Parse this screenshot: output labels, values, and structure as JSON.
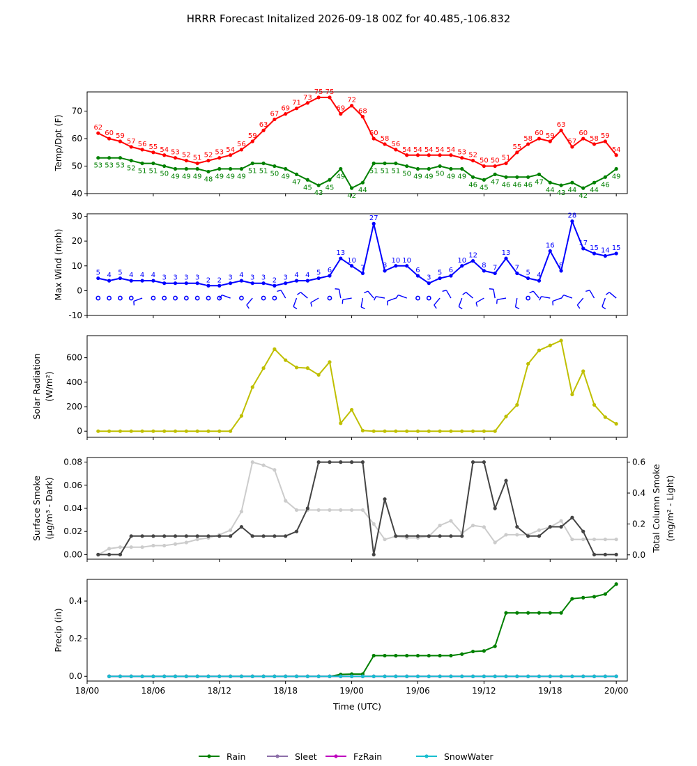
{
  "title": "HRRR Forecast Initalized 2026-09-18 00Z for 40.485,-106.832",
  "chart_data": [
    {
      "id": "temp",
      "type": "line",
      "ylabel": "Temp/Dpt (F)",
      "ylim": [
        40,
        77
      ],
      "yticks": [
        40,
        50,
        60,
        70
      ],
      "x_hours": [
        1,
        2,
        3,
        4,
        5,
        6,
        7,
        8,
        9,
        10,
        11,
        12,
        13,
        14,
        15,
        16,
        17,
        18,
        19,
        20,
        21,
        22,
        23,
        24,
        25,
        26,
        27,
        28,
        29,
        30,
        31,
        32,
        33,
        34,
        35,
        36,
        37,
        38,
        39,
        40,
        41,
        42,
        43,
        44,
        45,
        46,
        47,
        48
      ],
      "series": [
        {
          "name": "",
          "color": "#ff0000",
          "labels": true,
          "label_pos": "above",
          "values": [
            62,
            60,
            59,
            57,
            56,
            55,
            54,
            53,
            52,
            51,
            52,
            53,
            54,
            56,
            59,
            63,
            67,
            69,
            71,
            73,
            75,
            75,
            69,
            72,
            68,
            60,
            58,
            56,
            54,
            54,
            54,
            54,
            54,
            53,
            52,
            50,
            50,
            51,
            55,
            58,
            60,
            59,
            63,
            57,
            60,
            58,
            59,
            54
          ]
        },
        {
          "name": "",
          "color": "#008000",
          "labels": true,
          "label_pos": "below",
          "values": [
            53,
            53,
            53,
            52,
            51,
            51,
            50,
            49,
            49,
            49,
            48,
            49,
            49,
            49,
            51,
            51,
            50,
            49,
            47,
            45,
            43,
            45,
            49,
            42,
            44,
            51,
            51,
            51,
            50,
            49,
            49,
            50,
            49,
            49,
            46,
            45,
            47,
            46,
            46,
            46,
            47,
            44,
            43,
            44,
            42,
            44,
            46,
            49
          ]
        }
      ]
    },
    {
      "id": "wind",
      "type": "line",
      "ylabel": "Max Wind (mph)",
      "ylim": [
        -10,
        31
      ],
      "yticks": [
        -10,
        0,
        10,
        20,
        30
      ],
      "x_hours": [
        1,
        2,
        3,
        4,
        5,
        6,
        7,
        8,
        9,
        10,
        11,
        12,
        13,
        14,
        15,
        16,
        17,
        18,
        19,
        20,
        21,
        22,
        23,
        24,
        25,
        26,
        27,
        28,
        29,
        30,
        31,
        32,
        33,
        34,
        35,
        36,
        37,
        38,
        39,
        40,
        41,
        42,
        43,
        44,
        45,
        46,
        47,
        48
      ],
      "series": [
        {
          "name": "",
          "color": "#0000ff",
          "labels": true,
          "label_pos": "above",
          "values": [
            5,
            4,
            5,
            4,
            4,
            4,
            3,
            3,
            3,
            3,
            2,
            2,
            3,
            4,
            3,
            3,
            2,
            3,
            4,
            4,
            5,
            6,
            13,
            10,
            7,
            27,
            8,
            10,
            10,
            6,
            3,
            5,
            6,
            10,
            12,
            8,
            7,
            13,
            7,
            5,
            4,
            16,
            8,
            28,
            17,
            15,
            14,
            15
          ]
        }
      ],
      "barbs": {
        "y_value": -3,
        "calm_hours": [
          1,
          2,
          3,
          4,
          6,
          7,
          8,
          9,
          10,
          11,
          12,
          14,
          16,
          17,
          22,
          30,
          31,
          40
        ],
        "barb_hours": [
          5,
          13,
          15,
          18,
          19,
          20,
          21,
          23,
          24,
          25,
          26,
          27,
          28,
          29,
          32,
          33,
          34,
          35,
          36,
          37,
          38,
          39,
          41,
          42,
          43,
          44,
          45,
          46,
          47,
          48
        ]
      }
    },
    {
      "id": "solar",
      "type": "line",
      "ylabel": "Solar Radiation",
      "ylabel_unit": "(W/m²)",
      "ylim": [
        -50,
        780
      ],
      "yticks": [
        0,
        200,
        400,
        600
      ],
      "x_hours": [
        1,
        2,
        3,
        4,
        5,
        6,
        7,
        8,
        9,
        10,
        11,
        12,
        13,
        14,
        15,
        16,
        17,
        18,
        19,
        20,
        21,
        22,
        23,
        24,
        25,
        26,
        27,
        28,
        29,
        30,
        31,
        32,
        33,
        34,
        35,
        36,
        37,
        38,
        39,
        40,
        41,
        42,
        43,
        44,
        45,
        46,
        47,
        48
      ],
      "series": [
        {
          "name": "",
          "color": "#bfbf00",
          "labels": false,
          "values": [
            0,
            0,
            0,
            0,
            0,
            0,
            0,
            0,
            0,
            0,
            0,
            0,
            0,
            125,
            360,
            515,
            670,
            580,
            520,
            515,
            460,
            565,
            65,
            175,
            5,
            0,
            0,
            0,
            0,
            0,
            0,
            0,
            0,
            0,
            0,
            0,
            0,
            120,
            215,
            550,
            660,
            700,
            740,
            300,
            490,
            215,
            115,
            60
          ]
        }
      ]
    },
    {
      "id": "smoke",
      "type": "line",
      "ylabel": "Surface Smoke",
      "ylabel_unit": "(μg/m³ - Dark)",
      "ylabel_right": "Total Column Smoke",
      "ylabel_right_unit": "(mg/m² - Light)",
      "ylim": [
        -0.004,
        0.084
      ],
      "yticks": [
        0.0,
        0.02,
        0.04,
        0.06,
        0.08
      ],
      "ytick_labels": [
        "0.00",
        "0.02",
        "0.04",
        "0.06",
        "0.08"
      ],
      "ylim_right": [
        -0.028,
        0.63
      ],
      "yticks_right": [
        0.0,
        0.2,
        0.4,
        0.6
      ],
      "ytick_labels_right": [
        "0.0",
        "0.2",
        "0.4",
        "0.6"
      ],
      "x_hours": [
        1,
        2,
        3,
        4,
        5,
        6,
        7,
        8,
        9,
        10,
        11,
        12,
        13,
        14,
        15,
        16,
        17,
        18,
        19,
        20,
        21,
        22,
        23,
        24,
        25,
        26,
        27,
        28,
        29,
        30,
        31,
        32,
        33,
        34,
        35,
        36,
        37,
        38,
        39,
        40,
        41,
        42,
        43,
        44,
        45,
        46,
        47,
        48
      ],
      "series": [
        {
          "name": "",
          "color": "#cccccc",
          "axis": "right",
          "labels": false,
          "values": [
            0.0,
            0.04,
            0.05,
            0.05,
            0.05,
            0.06,
            0.06,
            0.07,
            0.08,
            0.1,
            0.11,
            0.13,
            0.16,
            0.28,
            0.6,
            0.58,
            0.55,
            0.35,
            0.29,
            0.29,
            0.29,
            0.29,
            0.29,
            0.29,
            0.29,
            0.2,
            0.1,
            0.12,
            0.11,
            0.11,
            0.12,
            0.19,
            0.22,
            0.14,
            0.19,
            0.18,
            0.08,
            0.13,
            0.13,
            0.13,
            0.16,
            0.18,
            0.22,
            0.1,
            0.1,
            0.1,
            0.1,
            0.1
          ]
        },
        {
          "name": "",
          "color": "#444444",
          "axis": "left",
          "labels": false,
          "values": [
            0.0,
            0.0,
            0.0,
            0.016,
            0.016,
            0.016,
            0.016,
            0.016,
            0.016,
            0.016,
            0.016,
            0.016,
            0.016,
            0.024,
            0.016,
            0.016,
            0.016,
            0.016,
            0.02,
            0.04,
            0.08,
            0.08,
            0.08,
            0.08,
            0.08,
            0.0,
            0.048,
            0.016,
            0.016,
            0.016,
            0.016,
            0.016,
            0.016,
            0.016,
            0.08,
            0.08,
            0.04,
            0.064,
            0.024,
            0.016,
            0.016,
            0.024,
            0.024,
            0.032,
            0.02,
            0.0,
            0.0,
            0.0
          ]
        }
      ]
    },
    {
      "id": "precip",
      "type": "line",
      "ylabel": "Precip (in)",
      "xlabel": "Time (UTC)",
      "ylim": [
        -0.025,
        0.515
      ],
      "yticks": [
        0.0,
        0.2,
        0.4
      ],
      "ytick_labels": [
        "0.0",
        "0.2",
        "0.4"
      ],
      "x_hours": [
        2,
        3,
        4,
        5,
        6,
        7,
        8,
        9,
        10,
        11,
        12,
        13,
        14,
        15,
        16,
        17,
        18,
        19,
        20,
        21,
        22,
        23,
        24,
        25,
        26,
        27,
        28,
        29,
        30,
        31,
        32,
        33,
        34,
        35,
        36,
        37,
        38,
        39,
        40,
        41,
        42,
        43,
        44,
        45,
        46,
        47,
        48
      ],
      "series": [
        {
          "name": "Rain",
          "color": "#008000",
          "labels": false,
          "values": [
            0,
            0,
            0,
            0,
            0,
            0,
            0,
            0,
            0,
            0,
            0,
            0,
            0,
            0,
            0,
            0,
            0,
            0,
            0,
            0,
            0,
            0.01,
            0.012,
            0.012,
            0.11,
            0.11,
            0.11,
            0.11,
            0.11,
            0.11,
            0.11,
            0.11,
            0.118,
            0.132,
            0.135,
            0.16,
            0.337,
            0.337,
            0.337,
            0.337,
            0.337,
            0.337,
            0.412,
            0.418,
            0.423,
            0.437,
            0.49
          ]
        },
        {
          "name": "Sleet",
          "color": "#8c6fa8",
          "labels": false,
          "values": [
            0,
            0,
            0,
            0,
            0,
            0,
            0,
            0,
            0,
            0,
            0,
            0,
            0,
            0,
            0,
            0,
            0,
            0,
            0,
            0,
            0,
            0,
            0,
            0,
            0,
            0,
            0,
            0,
            0,
            0,
            0,
            0,
            0,
            0,
            0,
            0,
            0,
            0,
            0,
            0,
            0,
            0,
            0,
            0,
            0,
            0,
            0
          ]
        },
        {
          "name": "FzRain",
          "color": "#bf00bf",
          "labels": false,
          "values": [
            0,
            0,
            0,
            0,
            0,
            0,
            0,
            0,
            0,
            0,
            0,
            0,
            0,
            0,
            0,
            0,
            0,
            0,
            0,
            0,
            0,
            0,
            0,
            0,
            0,
            0,
            0,
            0,
            0,
            0,
            0,
            0,
            0,
            0,
            0,
            0,
            0,
            0,
            0,
            0,
            0,
            0,
            0,
            0,
            0,
            0,
            0
          ]
        },
        {
          "name": "SnowWater",
          "color": "#17becf",
          "labels": false,
          "values": [
            0,
            0,
            0,
            0,
            0,
            0,
            0,
            0,
            0,
            0,
            0,
            0,
            0,
            0,
            0,
            0,
            0,
            0,
            0,
            0,
            0,
            0,
            0,
            0,
            0,
            0,
            0,
            0,
            0,
            0,
            0,
            0,
            0,
            0,
            0,
            0,
            0,
            0,
            0,
            0,
            0,
            0,
            0,
            0,
            0,
            0,
            0
          ]
        }
      ]
    }
  ],
  "x_axis": {
    "tick_hours": [
      0,
      6,
      12,
      18,
      24,
      30,
      36,
      42,
      48
    ],
    "tick_labels": [
      "18/00",
      "18/06",
      "18/12",
      "18/18",
      "19/00",
      "19/06",
      "19/12",
      "19/18",
      "20/00"
    ],
    "xlim_hours": [
      0,
      49
    ]
  },
  "legend": {
    "placement": "bottom-center",
    "entries": [
      "Rain",
      "Sleet",
      "FzRain",
      "SnowWater"
    ]
  }
}
